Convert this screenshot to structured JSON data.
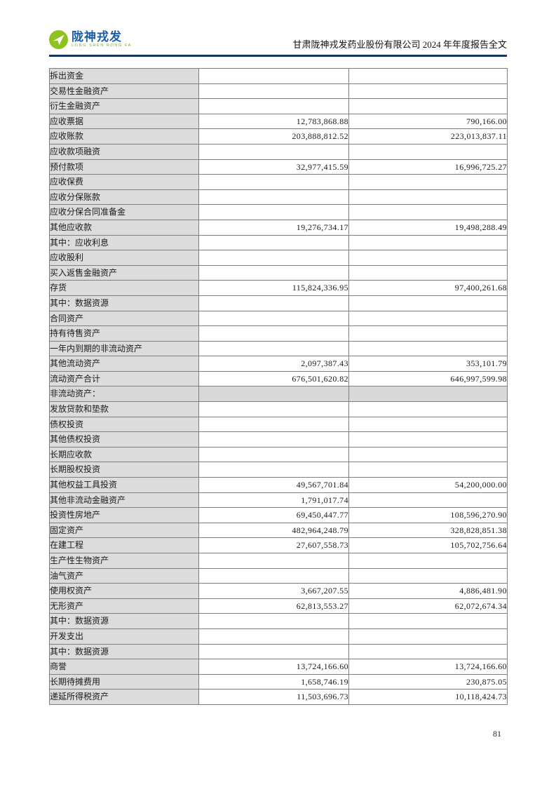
{
  "header": {
    "logo": {
      "brand": "陇神戎发",
      "subtext": "LONG SHEN RONG FA"
    },
    "title": "甘肃陇神戎发药业股份有限公司 2024 年年度报告全文",
    "accent_color": "#17365d",
    "logo_green": "#8dc21f",
    "logo_blue": "#1b5eab"
  },
  "table": {
    "label_column_bg": "#dcdcdc",
    "section_row_bg": "#d9d9d9",
    "rows": [
      {
        "label": "拆出资金",
        "indent": 1,
        "v1": "",
        "v2": "",
        "shaded": false
      },
      {
        "label": "交易性金融资产",
        "indent": 1,
        "v1": "",
        "v2": "",
        "shaded": false
      },
      {
        "label": "衍生金融资产",
        "indent": 1,
        "v1": "",
        "v2": "",
        "shaded": false
      },
      {
        "label": "应收票据",
        "indent": 1,
        "v1": "12,783,868.88",
        "v2": "790,166.00",
        "shaded": false
      },
      {
        "label": "应收账款",
        "indent": 1,
        "v1": "203,888,812.52",
        "v2": "223,013,837.11",
        "shaded": false
      },
      {
        "label": "应收款项融资",
        "indent": 1,
        "v1": "",
        "v2": "",
        "shaded": false
      },
      {
        "label": "预付款项",
        "indent": 1,
        "v1": "32,977,415.59",
        "v2": "16,996,725.27",
        "shaded": false
      },
      {
        "label": "应收保费",
        "indent": 1,
        "v1": "",
        "v2": "",
        "shaded": false
      },
      {
        "label": "应收分保账款",
        "indent": 1,
        "v1": "",
        "v2": "",
        "shaded": false
      },
      {
        "label": "应收分保合同准备金",
        "indent": 1,
        "v1": "",
        "v2": "",
        "shaded": false
      },
      {
        "label": "其他应收款",
        "indent": 1,
        "v1": "19,276,734.17",
        "v2": "19,498,288.49",
        "shaded": false
      },
      {
        "label": "其中：应收利息",
        "indent": 2,
        "v1": "",
        "v2": "",
        "shaded": false
      },
      {
        "label": "应收股利",
        "indent": 3,
        "v1": "",
        "v2": "",
        "shaded": false
      },
      {
        "label": "买入返售金融资产",
        "indent": 1,
        "v1": "",
        "v2": "",
        "shaded": false
      },
      {
        "label": "存货",
        "indent": 1,
        "v1": "115,824,336.95",
        "v2": "97,400,261.68",
        "shaded": false
      },
      {
        "label": "其中：数据资源",
        "indent": 2,
        "v1": "",
        "v2": "",
        "shaded": false
      },
      {
        "label": "合同资产",
        "indent": 1,
        "v1": "",
        "v2": "",
        "shaded": false
      },
      {
        "label": "持有待售资产",
        "indent": 1,
        "v1": "",
        "v2": "",
        "shaded": false
      },
      {
        "label": "一年内到期的非流动资产",
        "indent": 1,
        "v1": "",
        "v2": "",
        "shaded": false
      },
      {
        "label": "其他流动资产",
        "indent": 1,
        "v1": "2,097,387.43",
        "v2": "353,101.79",
        "shaded": false
      },
      {
        "label": "流动资产合计",
        "indent": 0,
        "v1": "676,501,620.82",
        "v2": "646,997,599.98",
        "shaded": false
      },
      {
        "label": "非流动资产：",
        "indent": 0,
        "v1": "",
        "v2": "",
        "shaded": true
      },
      {
        "label": "发放贷款和垫款",
        "indent": 1,
        "v1": "",
        "v2": "",
        "shaded": false
      },
      {
        "label": "债权投资",
        "indent": 1,
        "v1": "",
        "v2": "",
        "shaded": false
      },
      {
        "label": "其他债权投资",
        "indent": 1,
        "v1": "",
        "v2": "",
        "shaded": false
      },
      {
        "label": "长期应收款",
        "indent": 1,
        "v1": "",
        "v2": "",
        "shaded": false
      },
      {
        "label": "长期股权投资",
        "indent": 1,
        "v1": "",
        "v2": "",
        "shaded": false
      },
      {
        "label": "其他权益工具投资",
        "indent": 1,
        "v1": "49,567,701.84",
        "v2": "54,200,000.00",
        "shaded": false
      },
      {
        "label": "其他非流动金融资产",
        "indent": 1,
        "v1": "1,791,017.74",
        "v2": "",
        "shaded": false
      },
      {
        "label": "投资性房地产",
        "indent": 1,
        "v1": "69,450,447.77",
        "v2": "108,596,270.90",
        "shaded": false
      },
      {
        "label": "固定资产",
        "indent": 1,
        "v1": "482,964,248.79",
        "v2": "328,828,851.38",
        "shaded": false
      },
      {
        "label": "在建工程",
        "indent": 1,
        "v1": "27,607,558.73",
        "v2": "105,702,756.64",
        "shaded": false
      },
      {
        "label": "生产性生物资产",
        "indent": 1,
        "v1": "",
        "v2": "",
        "shaded": false
      },
      {
        "label": "油气资产",
        "indent": 1,
        "v1": "",
        "v2": "",
        "shaded": false
      },
      {
        "label": "使用权资产",
        "indent": 1,
        "v1": "3,667,207.55",
        "v2": "4,886,481.90",
        "shaded": false
      },
      {
        "label": "无形资产",
        "indent": 1,
        "v1": "62,813,553.27",
        "v2": "62,072,674.34",
        "shaded": false
      },
      {
        "label": "其中：数据资源",
        "indent": 2,
        "v1": "",
        "v2": "",
        "shaded": false
      },
      {
        "label": "开发支出",
        "indent": 1,
        "v1": "",
        "v2": "",
        "shaded": false
      },
      {
        "label": "其中：数据资源",
        "indent": 2,
        "v1": "",
        "v2": "",
        "shaded": false
      },
      {
        "label": "商誉",
        "indent": 1,
        "v1": "13,724,166.60",
        "v2": "13,724,166.60",
        "shaded": false
      },
      {
        "label": "长期待摊费用",
        "indent": 1,
        "v1": "1,658,746.19",
        "v2": "230,875.05",
        "shaded": false
      },
      {
        "label": "递延所得税资产",
        "indent": 1,
        "v1": "11,503,696.73",
        "v2": "10,118,424.73",
        "shaded": false
      }
    ]
  },
  "footer": {
    "page_number": "81"
  }
}
